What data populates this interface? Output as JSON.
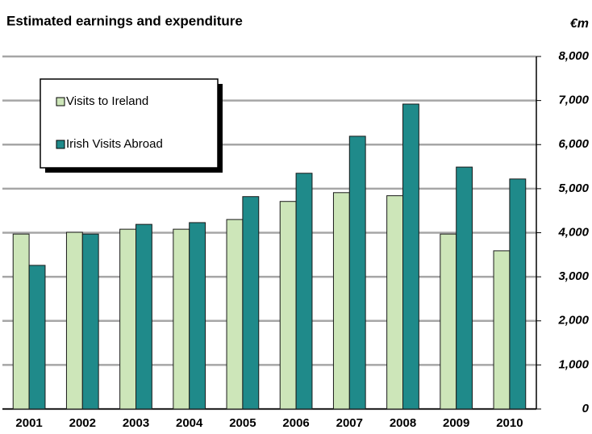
{
  "chart_data": {
    "type": "bar",
    "title": "Estimated earnings and expenditure",
    "unit": "€m",
    "categories": [
      "2001",
      "2002",
      "2003",
      "2004",
      "2005",
      "2006",
      "2007",
      "2008",
      "2009",
      "2010"
    ],
    "series": [
      {
        "name": "Visits to Ireland",
        "color": "#cde6b9",
        "values": [
          3970,
          4010,
          4080,
          4080,
          4300,
          4710,
          4910,
          4840,
          3970,
          3590
        ]
      },
      {
        "name": "Irish Visits Abroad",
        "color": "#1f8a8a",
        "values": [
          3260,
          3970,
          4190,
          4230,
          4820,
          5350,
          6190,
          6920,
          5490,
          5220
        ]
      }
    ],
    "ylim": [
      0,
      8000
    ],
    "yticks": [
      0,
      {
        "value": 1000,
        "label": "1,000"
      },
      {
        "value": 2000,
        "label": "2,000"
      },
      {
        "value": 3000,
        "label": "3,000"
      },
      {
        "value": 4000,
        "label": "4,000"
      },
      {
        "value": 5000,
        "label": "5,000"
      },
      {
        "value": 6000,
        "label": "6,000"
      },
      {
        "value": 7000,
        "label": "7,000"
      },
      {
        "value": 8000,
        "label": "8,000"
      }
    ],
    "grid": true,
    "legend": "upper left"
  }
}
